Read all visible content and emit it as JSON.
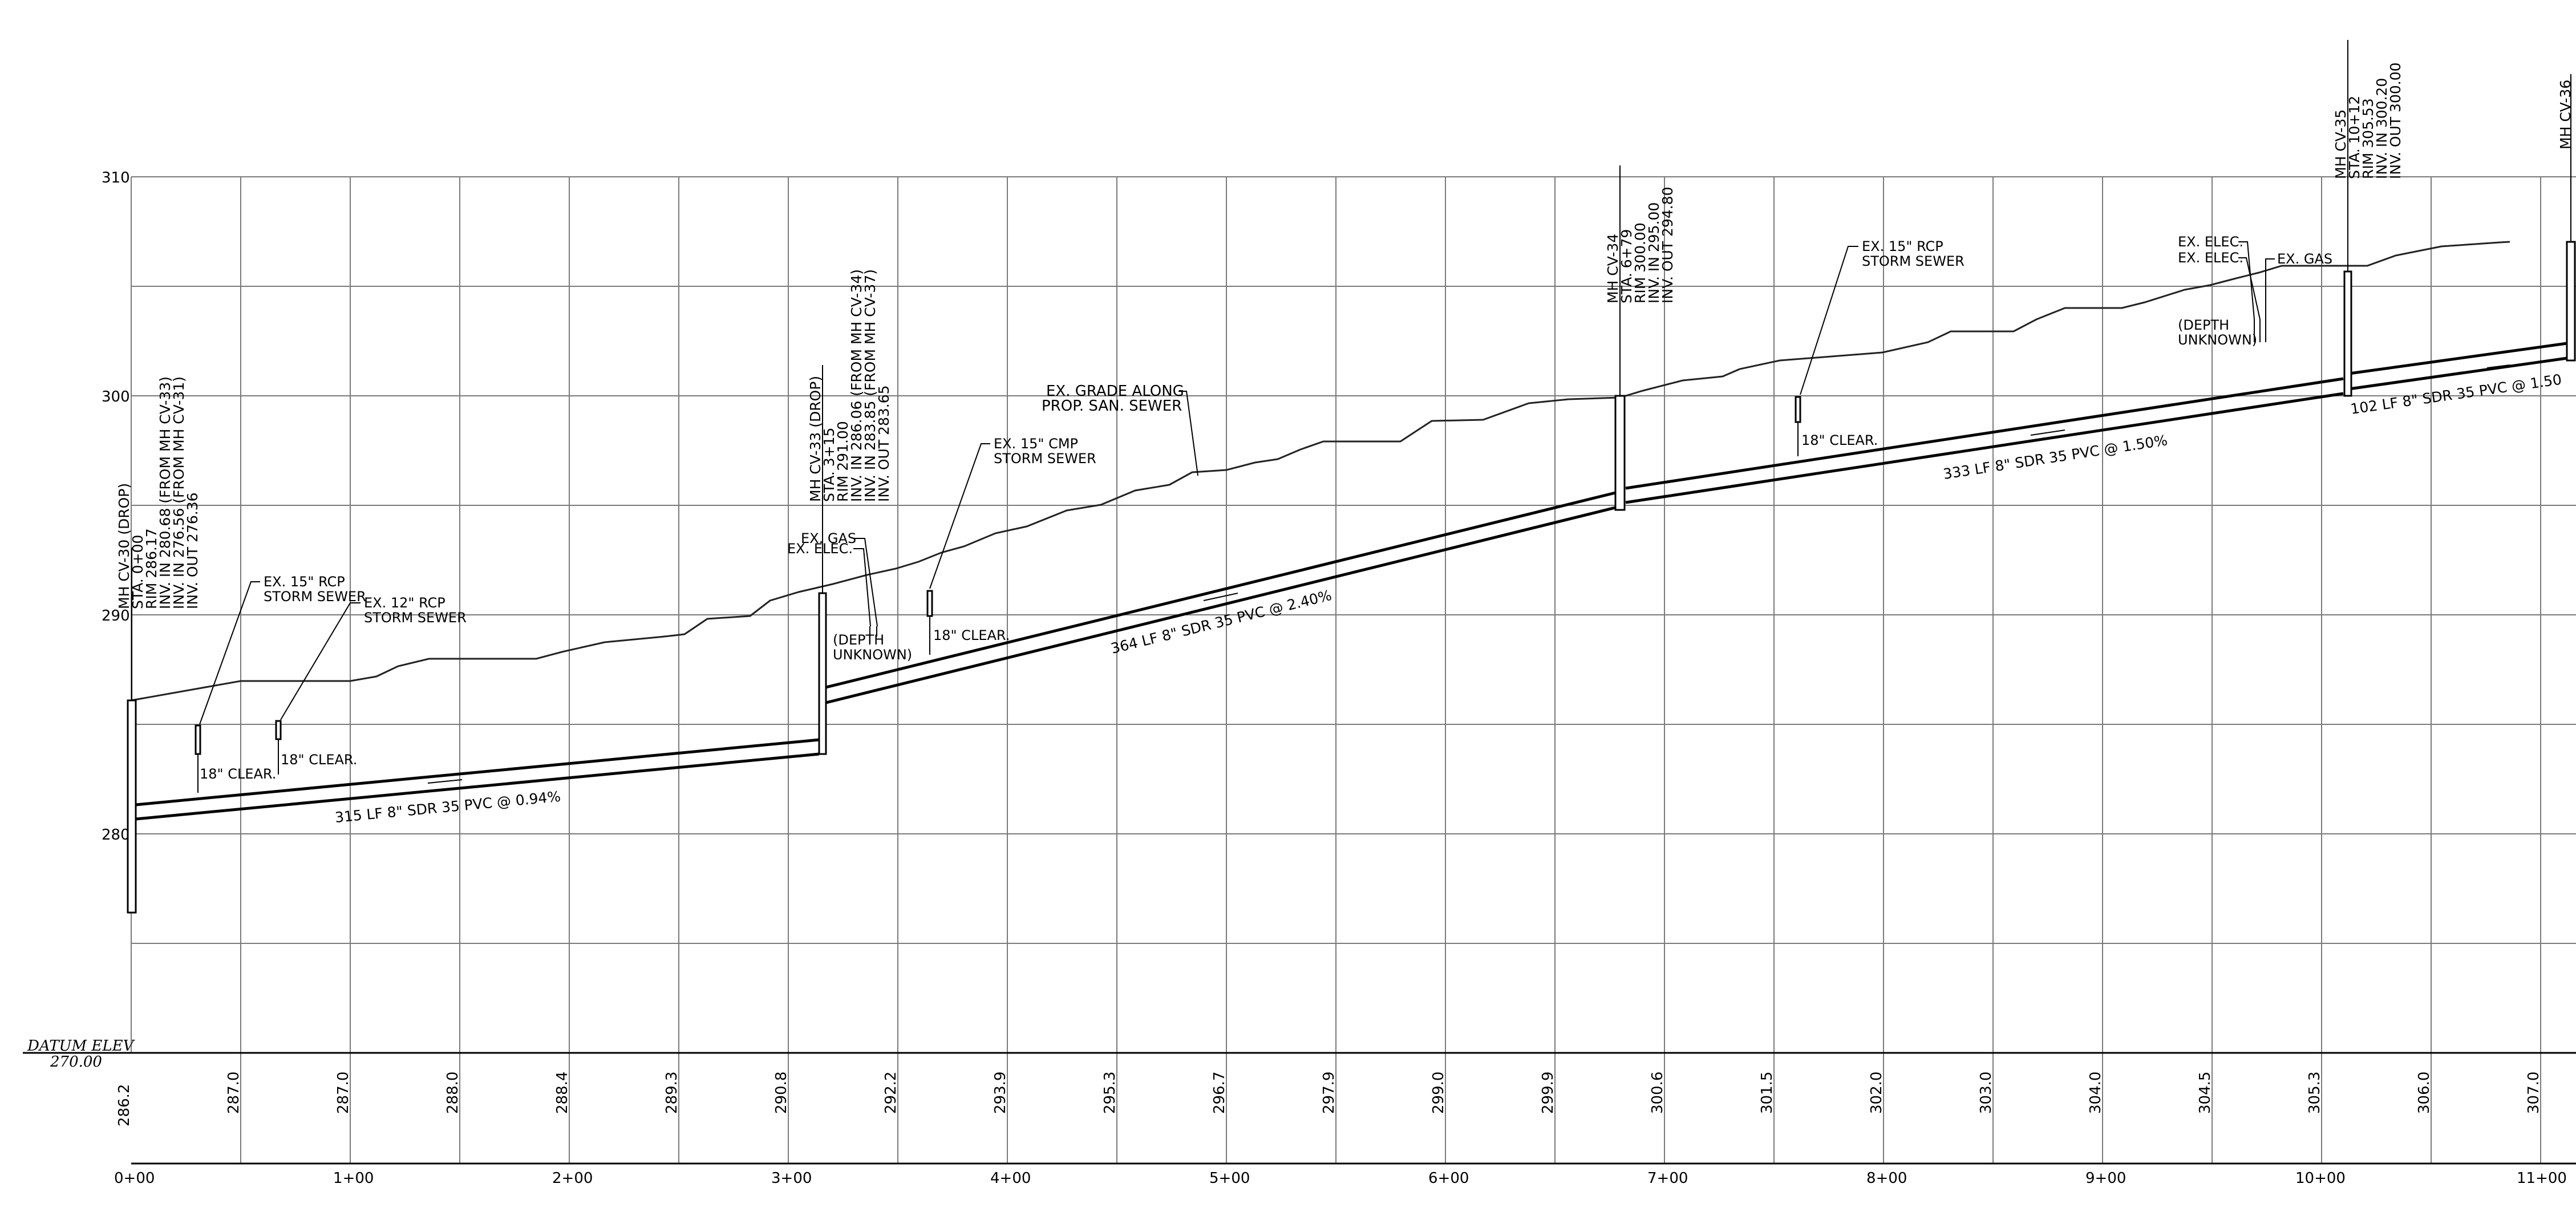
{
  "datum": {
    "label": "DATUM ELEV",
    "value": "270.00"
  },
  "elev_labels": [
    "310",
    "300",
    "290",
    "280"
  ],
  "stations": [
    "0+00",
    "1+00",
    "2+00",
    "3+00",
    "4+00",
    "5+00",
    "6+00",
    "7+00",
    "8+00",
    "9+00",
    "10+00",
    "11+00"
  ],
  "grade_values": [
    "286.2",
    "287.0",
    "287.0",
    "288.0",
    "288.4",
    "289.3",
    "290.8",
    "292.2",
    "293.9",
    "295.3",
    "296.7",
    "297.9",
    "299.0",
    "299.9",
    "300.6",
    "301.5",
    "302.0",
    "303.0",
    "304.0",
    "304.5",
    "305.3",
    "306.0",
    "307.0"
  ],
  "manholes": [
    {
      "lines": [
        "MH CV-30 (DROP)",
        "STA. 0+00",
        "RIM 286.17",
        "INV. IN 280.68 (FROM MH CV-33)",
        "INV. IN 276.56 (FROM MH CV-31)",
        "INV. OUT 276.36"
      ]
    },
    {
      "lines": [
        "MH CV-33 (DROP)",
        "STA. 3+15",
        "RIM 291.00",
        "INV. IN 286.06 (FROM MH CV-34)",
        "INV. IN 283.85 (FROM MH CV-37)",
        "INV. OUT 283.65"
      ]
    },
    {
      "lines": [
        "MH CV-34",
        "STA. 6+79",
        "RIM 300.00",
        "INV. IN 295.00",
        "INV. OUT 294.80"
      ]
    },
    {
      "lines": [
        "MH CV-35",
        "STA. 10+12",
        "RIM 305.53",
        "INV. IN 300.20",
        "INV. OUT 300.00"
      ]
    },
    {
      "lines": [
        "MH CV-36"
      ]
    }
  ],
  "pipes": [
    {
      "label": "315 LF  8\" SDR 35 PVC  @ 0.94%"
    },
    {
      "label": "364 LF  8\" SDR 35 PVC  @ 2.40%"
    },
    {
      "label": "333 LF  8\" SDR 35 PVC  @ 1.50%"
    },
    {
      "label": "102 LF  8\" SDR 35 PVC  @ 1.50"
    }
  ],
  "grade_note": [
    "EX. GRADE ALONG",
    "PROP. SAN. SEWER"
  ],
  "utilities": {
    "storm1": [
      "EX. 15\" RCP",
      "STORM SEWER"
    ],
    "storm2": [
      "EX. 12\" RCP",
      "STORM SEWER"
    ],
    "clear1": "18\" CLEAR.",
    "clear2": "18\" CLEAR.",
    "gas1": "EX. GAS",
    "elec1": "EX. ELEC.",
    "depth1": [
      "(DEPTH",
      "UNKNOWN)"
    ],
    "cmp": [
      "EX. 15\" CMP",
      "STORM SEWER"
    ],
    "clear3": "18\" CLEAR.",
    "storm3": [
      "EX. 15\" RCP",
      "STORM SEWER"
    ],
    "clear4": "18\" CLEAR.",
    "elec2a": "EX. ELEC.",
    "elec2b": "EX. ELEC.",
    "gas2": "EX. GAS",
    "depth2": [
      "(DEPTH",
      "UNKNOWN)"
    ]
  }
}
